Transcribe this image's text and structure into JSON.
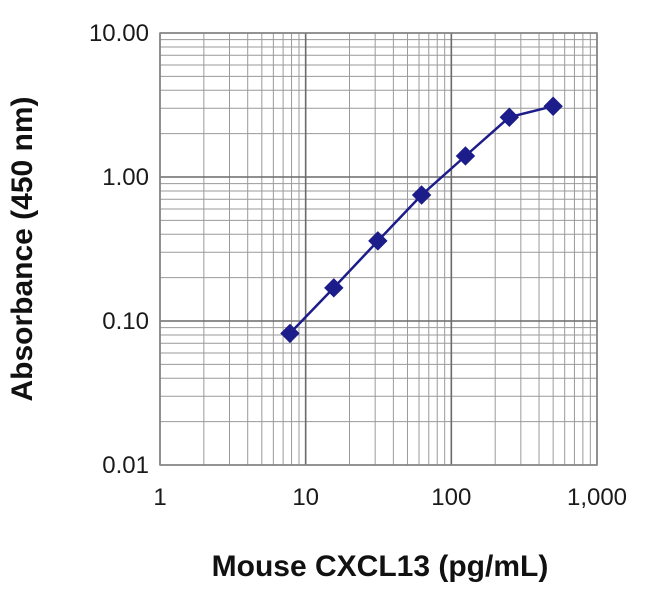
{
  "chart_data": {
    "type": "line",
    "title": "",
    "xlabel": "Mouse CXCL13 (pg/mL)",
    "ylabel": "Absorbance (450 nm)",
    "xscale": "log",
    "yscale": "log",
    "xlim": [
      1,
      1000
    ],
    "ylim": [
      0.01,
      10
    ],
    "xticks": [
      "1",
      "10",
      "100",
      "1,000"
    ],
    "yticks": [
      "0.01",
      "0.10",
      "1.00",
      "10.00"
    ],
    "grid": true,
    "legend": "none",
    "series": [
      {
        "marker": "diamond",
        "color": "#1c1c8a",
        "x": [
          7.8,
          15.6,
          31.3,
          62.5,
          125,
          250,
          500
        ],
        "y": [
          0.082,
          0.17,
          0.36,
          0.75,
          1.4,
          2.6,
          3.1
        ]
      }
    ]
  }
}
